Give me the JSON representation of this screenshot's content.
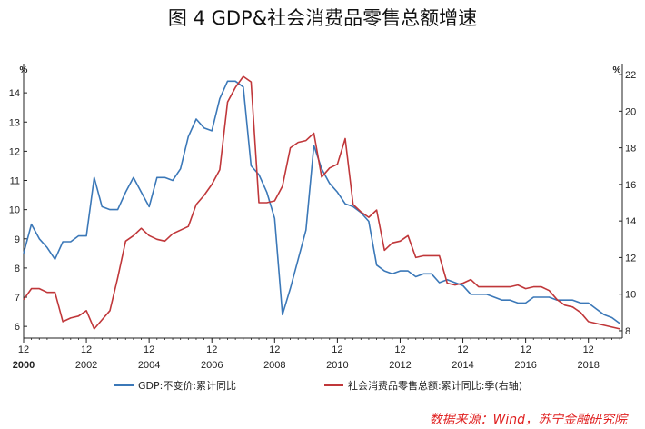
{
  "chart_data": {
    "type": "line",
    "title": "图 4   GDP&社会消费品零售总额增速",
    "left_axis": {
      "unit": "%",
      "ylim": [
        5.6,
        15.0
      ],
      "ticks": [
        6,
        7,
        8,
        9,
        10,
        11,
        12,
        13,
        14
      ]
    },
    "right_axis": {
      "unit": "%",
      "ylim": [
        7.6,
        22.6
      ],
      "ticks": [
        8,
        10,
        12,
        14,
        16,
        18,
        20,
        22
      ]
    },
    "x_axis": {
      "xlim": [
        2000.0,
        2019.08
      ],
      "ticks": [
        {
          "x": 2000.0,
          "top": "12",
          "bottom": "2000"
        },
        {
          "x": 2002.0,
          "top": "12",
          "bottom": "2002"
        },
        {
          "x": 2004.0,
          "top": "12",
          "bottom": "2004"
        },
        {
          "x": 2006.0,
          "top": "12",
          "bottom": "2006"
        },
        {
          "x": 2008.0,
          "top": "12",
          "bottom": "2008"
        },
        {
          "x": 2010.0,
          "top": "12",
          "bottom": "2010"
        },
        {
          "x": 2012.0,
          "top": "12",
          "bottom": "2012"
        },
        {
          "x": 2014.0,
          "top": "12",
          "bottom": "2014"
        },
        {
          "x": 2016.0,
          "top": "12",
          "bottom": "2016"
        },
        {
          "x": 2018.0,
          "top": "12",
          "bottom": "2018"
        }
      ]
    },
    "series": [
      {
        "name": "GDP:不变价:累计同比",
        "axis": "left",
        "color": "#3b78b8",
        "x": [
          2000.0,
          2000.25,
          2000.5,
          2000.75,
          2001.0,
          2001.25,
          2001.5,
          2001.75,
          2002.0,
          2002.25,
          2002.5,
          2002.75,
          2003.0,
          2003.25,
          2003.5,
          2003.75,
          2004.0,
          2004.25,
          2004.5,
          2004.75,
          2005.0,
          2005.25,
          2005.5,
          2005.75,
          2006.0,
          2006.25,
          2006.5,
          2006.75,
          2007.0,
          2007.25,
          2007.5,
          2007.75,
          2008.0,
          2008.25,
          2008.5,
          2008.75,
          2009.0,
          2009.25,
          2009.5,
          2009.75,
          2010.0,
          2010.25,
          2010.5,
          2010.75,
          2011.0,
          2011.25,
          2011.5,
          2011.75,
          2012.0,
          2012.25,
          2012.5,
          2012.75,
          2013.0,
          2013.25,
          2013.5,
          2013.75,
          2014.0,
          2014.25,
          2014.5,
          2014.75,
          2015.0,
          2015.25,
          2015.5,
          2015.75,
          2016.0,
          2016.25,
          2016.5,
          2016.75,
          2017.0,
          2017.25,
          2017.5,
          2017.75,
          2018.0,
          2018.25,
          2018.5,
          2018.75,
          2019.0
        ],
        "values": [
          8.5,
          9.5,
          9.0,
          8.7,
          8.3,
          8.9,
          8.9,
          9.1,
          9.1,
          11.1,
          10.1,
          10.0,
          10.0,
          10.6,
          11.1,
          10.6,
          10.1,
          11.1,
          11.1,
          11.0,
          11.4,
          12.5,
          13.1,
          12.8,
          12.7,
          13.8,
          14.4,
          14.4,
          14.2,
          11.5,
          11.2,
          10.6,
          9.7,
          6.4,
          7.3,
          8.3,
          9.3,
          12.2,
          11.4,
          10.9,
          10.6,
          10.2,
          10.1,
          9.9,
          9.6,
          8.1,
          7.9,
          7.8,
          7.9,
          7.9,
          7.7,
          7.8,
          7.8,
          7.5,
          7.6,
          7.5,
          7.4,
          7.1,
          7.1,
          7.1,
          7.0,
          6.9,
          6.9,
          6.8,
          6.8,
          7.0,
          7.0,
          7.0,
          6.9,
          6.9,
          6.9,
          6.8,
          6.8,
          6.6,
          6.4,
          6.3,
          6.1
        ]
      },
      {
        "name": "社会消费品零售总额:累计同比:季(右轴)",
        "axis": "right",
        "color": "#c0373a",
        "x": [
          2000.0,
          2000.25,
          2000.5,
          2000.75,
          2001.0,
          2001.25,
          2001.5,
          2001.75,
          2002.0,
          2002.25,
          2002.5,
          2002.75,
          2003.0,
          2003.25,
          2003.5,
          2003.75,
          2004.0,
          2004.25,
          2004.5,
          2004.75,
          2005.0,
          2005.25,
          2005.5,
          2005.75,
          2006.0,
          2006.25,
          2006.5,
          2006.75,
          2007.0,
          2007.25,
          2007.5,
          2007.75,
          2008.0,
          2008.25,
          2008.5,
          2008.75,
          2009.0,
          2009.25,
          2009.5,
          2009.75,
          2010.0,
          2010.25,
          2010.5,
          2010.75,
          2011.0,
          2011.25,
          2011.5,
          2011.75,
          2012.0,
          2012.25,
          2012.5,
          2012.75,
          2013.0,
          2013.25,
          2013.5,
          2013.75,
          2014.0,
          2014.25,
          2014.5,
          2014.75,
          2015.0,
          2015.25,
          2015.5,
          2015.75,
          2016.0,
          2016.25,
          2016.5,
          2016.75,
          2017.0,
          2017.25,
          2017.5,
          2017.75,
          2018.0,
          2018.25,
          2018.5,
          2018.75,
          2019.0
        ],
        "values": [
          9.7,
          10.3,
          10.3,
          10.1,
          10.1,
          8.5,
          8.7,
          8.8,
          9.1,
          8.1,
          8.6,
          9.1,
          10.9,
          12.9,
          13.2,
          13.6,
          13.2,
          13.0,
          12.9,
          13.3,
          13.5,
          13.7,
          14.9,
          15.4,
          16.0,
          16.8,
          20.5,
          21.3,
          21.9,
          21.6,
          15.0,
          15.0,
          15.1,
          15.9,
          18.0,
          18.3,
          18.4,
          18.8,
          16.4,
          16.9,
          17.1,
          18.5,
          14.9,
          14.5,
          14.2,
          14.6,
          12.4,
          12.8,
          12.9,
          13.2,
          12.0,
          12.1,
          12.1,
          12.1,
          10.6,
          10.5,
          10.6,
          10.8,
          10.4,
          10.4,
          10.4,
          10.4,
          10.4,
          10.5,
          10.3,
          10.4,
          10.4,
          10.2,
          9.7,
          9.4,
          9.3,
          9.0,
          8.5,
          8.4,
          8.3,
          8.2,
          8.1
        ]
      }
    ],
    "legend_position": "bottom",
    "source": "数据来源：Wind，苏宁金融研究院"
  }
}
